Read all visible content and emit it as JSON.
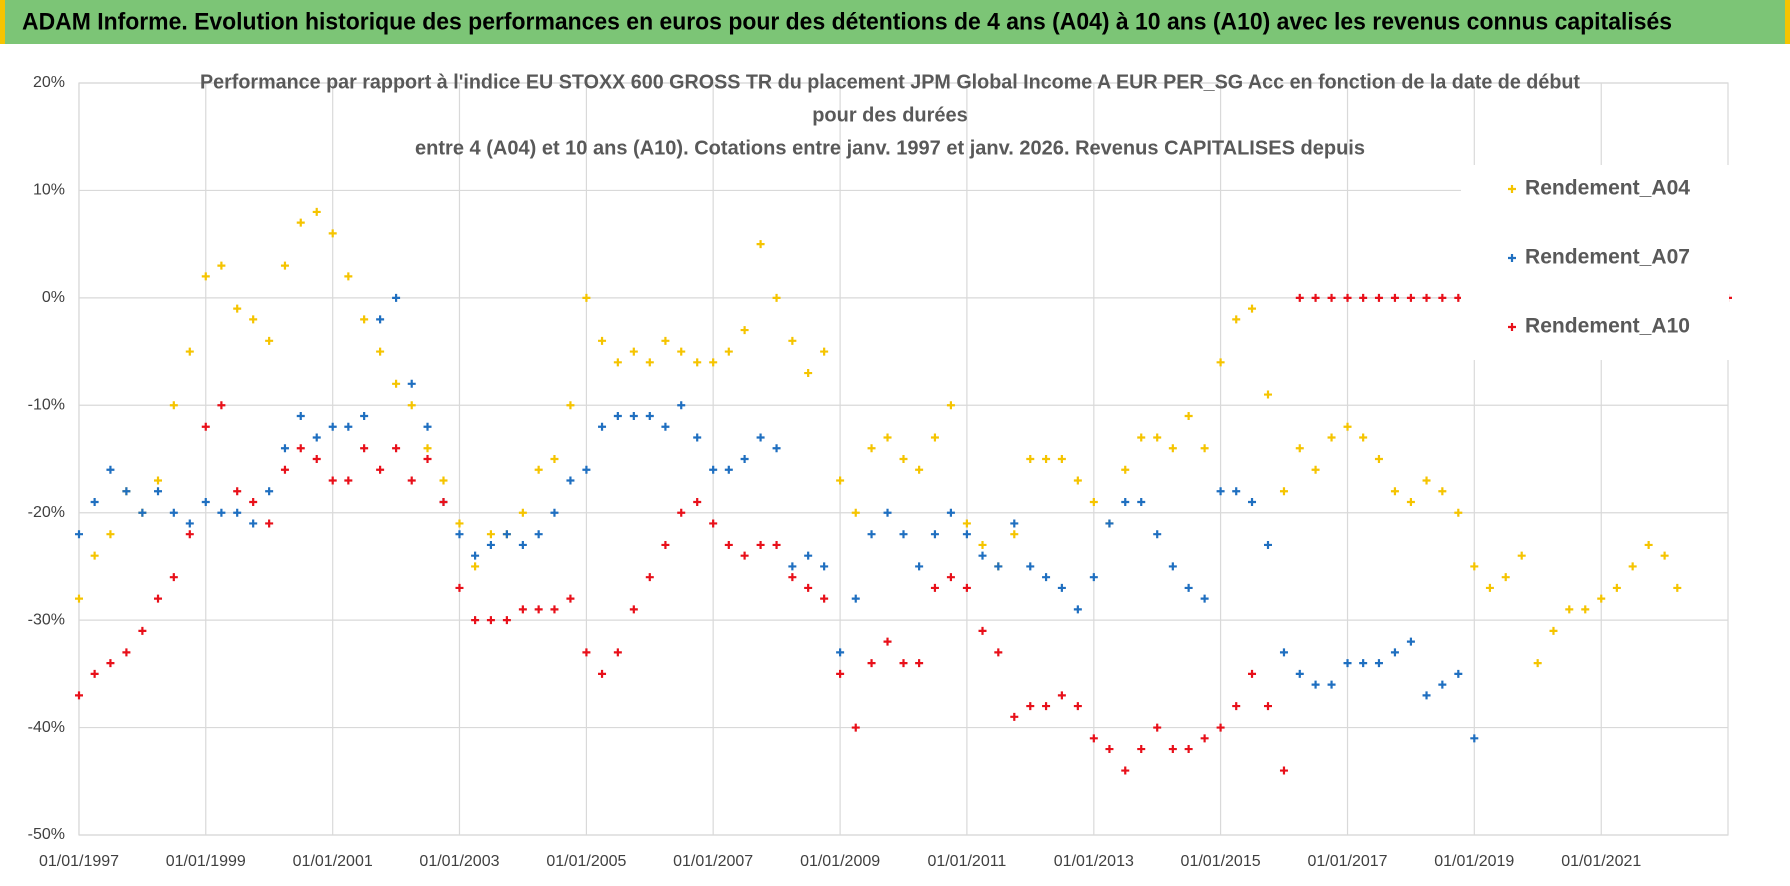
{
  "header": {
    "title": "ADAM Informe. Evolution historique des performances en euros pour des détentions de 4 ans (A04) à 10 ans (A10) avec les revenus connus capitalisés"
  },
  "chart_data": {
    "type": "scatter",
    "title": [
      "Performance par rapport à l'indice EU STOXX 600 GROSS TR  du placement JPM Global Income A EUR PER_SG Acc en fonction de la date de début",
      "pour des durées",
      "entre 4 (A04) et 10 ans (A10).  Cotations entre janv. 1997 et janv. 2026. Revenus CAPITALISES depuis"
    ],
    "xlim": [
      "1997-01-01",
      "2023-01-01"
    ],
    "xticks": [
      {
        "value": "1997-01-01",
        "label": "01/01/1997"
      },
      {
        "value": "1999-01-01",
        "label": "01/01/1999"
      },
      {
        "value": "2001-01-01",
        "label": "01/01/2001"
      },
      {
        "value": "2003-01-01",
        "label": "01/01/2003"
      },
      {
        "value": "2005-01-01",
        "label": "01/01/2005"
      },
      {
        "value": "2007-01-01",
        "label": "01/01/2007"
      },
      {
        "value": "2009-01-01",
        "label": "01/01/2009"
      },
      {
        "value": "2011-01-01",
        "label": "01/01/2011"
      },
      {
        "value": "2013-01-01",
        "label": "01/01/2013"
      },
      {
        "value": "2015-01-01",
        "label": "01/01/2015"
      },
      {
        "value": "2017-01-01",
        "label": "01/01/2017"
      },
      {
        "value": "2019-01-01",
        "label": "01/01/2019"
      },
      {
        "value": "2021-01-01",
        "label": "01/01/2021"
      }
    ],
    "ylim": [
      -50,
      20
    ],
    "yticks": [
      {
        "value": -50,
        "label": "-50%"
      },
      {
        "value": -40,
        "label": "-40%"
      },
      {
        "value": -30,
        "label": "-30%"
      },
      {
        "value": -20,
        "label": "-20%"
      },
      {
        "value": -10,
        "label": "-10%"
      },
      {
        "value": 0,
        "label": "0%"
      },
      {
        "value": 10,
        "label": "10%"
      },
      {
        "value": 20,
        "label": "20%"
      }
    ],
    "grid": true,
    "legend": "right",
    "series": [
      {
        "name": "Rendement_A04",
        "color": "#f5c400",
        "x": [
          "1997-01-01",
          "1997-04-01",
          "1997-07-01",
          "1997-10-01",
          "1998-01-01",
          "1998-04-01",
          "1998-07-01",
          "1998-10-01",
          "1999-01-01",
          "1999-04-01",
          "1999-07-01",
          "1999-10-01",
          "2000-01-01",
          "2000-04-01",
          "2000-07-01",
          "2000-10-01",
          "2001-01-01",
          "2001-04-01",
          "2001-07-01",
          "2001-10-01",
          "2002-01-01",
          "2002-04-01",
          "2002-07-01",
          "2002-10-01",
          "2003-01-01",
          "2003-04-01",
          "2003-07-01",
          "2003-10-01",
          "2004-01-01",
          "2004-04-01",
          "2004-07-01",
          "2004-10-01",
          "2005-01-01",
          "2005-04-01",
          "2005-07-01",
          "2005-10-01",
          "2006-01-01",
          "2006-04-01",
          "2006-07-01",
          "2006-10-01",
          "2007-01-01",
          "2007-04-01",
          "2007-07-01",
          "2007-10-01",
          "2008-01-01",
          "2008-04-01",
          "2008-07-01",
          "2008-10-01",
          "2009-01-01",
          "2009-04-01",
          "2009-07-01",
          "2009-10-01",
          "2010-01-01",
          "2010-04-01",
          "2010-07-01",
          "2010-10-01",
          "2011-01-01",
          "2011-04-01",
          "2011-07-01",
          "2011-10-01",
          "2012-01-01",
          "2012-04-01",
          "2012-07-01",
          "2012-10-01",
          "2013-01-01",
          "2013-04-01",
          "2013-07-01",
          "2013-10-01",
          "2014-01-01",
          "2014-04-01",
          "2014-07-01",
          "2014-10-01",
          "2015-01-01",
          "2015-04-01",
          "2015-07-01",
          "2015-10-01",
          "2016-01-01",
          "2016-04-01",
          "2016-07-01",
          "2016-10-01",
          "2017-01-01",
          "2017-04-01",
          "2017-07-01",
          "2017-10-01",
          "2018-01-01",
          "2018-04-01",
          "2018-07-01",
          "2018-10-01",
          "2019-01-01",
          "2019-04-01",
          "2019-07-01",
          "2019-10-01",
          "2020-01-01",
          "2020-04-01",
          "2020-07-01",
          "2020-10-01",
          "2021-01-01",
          "2021-04-01",
          "2021-07-01",
          "2021-10-01",
          "2022-01-01",
          "2022-03-15"
        ],
        "values": [
          -28,
          -24,
          -22,
          -18,
          -20,
          -17,
          -10,
          -5,
          2,
          3,
          -1,
          -2,
          -4,
          3,
          7,
          8,
          6,
          2,
          -2,
          -5,
          -8,
          -10,
          -14,
          -17,
          -21,
          -25,
          -22,
          -22,
          -20,
          -16,
          -15,
          -10,
          0,
          -4,
          -6,
          -5,
          -6,
          -4,
          -5,
          -6,
          -6,
          -5,
          -3,
          5,
          0,
          -4,
          -7,
          -5,
          -17,
          -20,
          -14,
          -13,
          -15,
          -16,
          -13,
          -10,
          -21,
          -23,
          -25,
          -22,
          -15,
          -15,
          -15,
          -17,
          -19,
          -21,
          -16,
          -13,
          -13,
          -14,
          -11,
          -14,
          -6,
          -2,
          -1,
          -9,
          -18,
          -14,
          -16,
          -13,
          -12,
          -13,
          -15,
          -18,
          -19,
          -17,
          -18,
          -20,
          -25,
          -27,
          -26,
          -24,
          -34,
          -31,
          -29,
          -29,
          -28,
          -27,
          -25,
          -23,
          -24,
          -27
        ]
      },
      {
        "name": "Rendement_A07",
        "color": "#1f6fc0",
        "x": [
          "1997-01-01",
          "1997-04-01",
          "1997-07-01",
          "1997-10-01",
          "1998-01-01",
          "1998-04-01",
          "1998-07-01",
          "1998-10-01",
          "1999-01-01",
          "1999-04-01",
          "1999-07-01",
          "1999-10-01",
          "2000-01-01",
          "2000-04-01",
          "2000-07-01",
          "2000-10-01",
          "2001-01-01",
          "2001-04-01",
          "2001-07-01",
          "2001-10-01",
          "2002-01-01",
          "2002-04-01",
          "2002-07-01",
          "2002-10-01",
          "2003-01-01",
          "2003-04-01",
          "2003-07-01",
          "2003-10-01",
          "2004-01-01",
          "2004-04-01",
          "2004-07-01",
          "2004-10-01",
          "2005-01-01",
          "2005-04-01",
          "2005-07-01",
          "2005-10-01",
          "2006-01-01",
          "2006-04-01",
          "2006-07-01",
          "2006-10-01",
          "2007-01-01",
          "2007-04-01",
          "2007-07-01",
          "2007-10-01",
          "2008-01-01",
          "2008-04-01",
          "2008-07-01",
          "2008-10-01",
          "2009-01-01",
          "2009-04-01",
          "2009-07-01",
          "2009-10-01",
          "2010-01-01",
          "2010-04-01",
          "2010-07-01",
          "2010-10-01",
          "2011-01-01",
          "2011-04-01",
          "2011-07-01",
          "2011-10-01",
          "2012-01-01",
          "2012-04-01",
          "2012-07-01",
          "2012-10-01",
          "2013-01-01",
          "2013-04-01",
          "2013-07-01",
          "2013-10-01",
          "2014-01-01",
          "2014-04-01",
          "2014-07-01",
          "2014-10-01",
          "2015-01-01",
          "2015-04-01",
          "2015-07-01",
          "2015-10-01",
          "2016-01-01",
          "2016-04-01",
          "2016-07-01",
          "2016-10-01",
          "2017-01-01",
          "2017-04-01",
          "2017-07-01",
          "2017-10-01",
          "2018-01-01",
          "2018-04-01",
          "2018-07-01",
          "2018-10-01",
          "2019-01-01"
        ],
        "values": [
          -22,
          -19,
          -16,
          -18,
          -20,
          -18,
          -20,
          -21,
          -19,
          -20,
          -20,
          -21,
          -18,
          -14,
          -11,
          -13,
          -12,
          -12,
          -11,
          -2,
          0,
          -8,
          -12,
          -19,
          -22,
          -24,
          -23,
          -22,
          -23,
          -22,
          -20,
          -17,
          -16,
          -12,
          -11,
          -11,
          -11,
          -12,
          -10,
          -13,
          -16,
          -16,
          -15,
          -13,
          -14,
          -25,
          -24,
          -25,
          -33,
          -28,
          -22,
          -20,
          -22,
          -25,
          -22,
          -20,
          -22,
          -24,
          -25,
          -21,
          -25,
          -26,
          -27,
          -29,
          -26,
          -21,
          -19,
          -19,
          -22,
          -25,
          -27,
          -28,
          -18,
          -18,
          -19,
          -23,
          -33,
          -35,
          -36,
          -36,
          -34,
          -34,
          -34,
          -33,
          -32,
          -37,
          -36,
          -35,
          -41
        ]
      },
      {
        "name": "Rendement_A10",
        "color": "#e8101a",
        "x": [
          "1997-01-01",
          "1997-04-01",
          "1997-07-01",
          "1997-10-01",
          "1998-01-01",
          "1998-04-01",
          "1998-07-01",
          "1998-10-01",
          "1999-01-01",
          "1999-04-01",
          "1999-07-01",
          "1999-10-01",
          "2000-01-01",
          "2000-04-01",
          "2000-07-01",
          "2000-10-01",
          "2001-01-01",
          "2001-04-01",
          "2001-07-01",
          "2001-10-01",
          "2002-01-01",
          "2002-04-01",
          "2002-07-01",
          "2002-10-01",
          "2003-01-01",
          "2003-04-01",
          "2003-07-01",
          "2003-10-01",
          "2004-01-01",
          "2004-04-01",
          "2004-07-01",
          "2004-10-01",
          "2005-01-01",
          "2005-04-01",
          "2005-07-01",
          "2005-10-01",
          "2006-01-01",
          "2006-04-01",
          "2006-07-01",
          "2006-10-01",
          "2007-01-01",
          "2007-04-01",
          "2007-07-01",
          "2007-10-01",
          "2008-01-01",
          "2008-04-01",
          "2008-07-01",
          "2008-10-01",
          "2009-01-01",
          "2009-04-01",
          "2009-07-01",
          "2009-10-01",
          "2010-01-01",
          "2010-04-01",
          "2010-07-01",
          "2010-10-01",
          "2011-01-01",
          "2011-04-01",
          "2011-07-01",
          "2011-10-01",
          "2012-01-01",
          "2012-04-01",
          "2012-07-01",
          "2012-10-01",
          "2013-01-01",
          "2013-04-01",
          "2013-07-01",
          "2013-10-01",
          "2014-01-01",
          "2014-04-01",
          "2014-07-01",
          "2014-10-01",
          "2015-01-01",
          "2015-04-01",
          "2015-07-01",
          "2015-10-01",
          "2016-01-01",
          "2016-04-01",
          "2016-07-01",
          "2016-10-01",
          "2017-01-01",
          "2017-04-01",
          "2017-07-01",
          "2017-10-01",
          "2018-01-01",
          "2018-04-01",
          "2018-07-01",
          "2018-10-01",
          "2023-01-01"
        ],
        "values": [
          -37,
          -35,
          -34,
          -33,
          -31,
          -28,
          -26,
          -22,
          -12,
          -10,
          -18,
          -19,
          -21,
          -16,
          -14,
          -15,
          -17,
          -17,
          -14,
          -16,
          -14,
          -17,
          -15,
          -19,
          -27,
          -30,
          -30,
          -30,
          -29,
          -29,
          -29,
          -28,
          -33,
          -35,
          -33,
          -29,
          -26,
          -23,
          -20,
          -19,
          -21,
          -23,
          -24,
          -23,
          -23,
          -26,
          -27,
          -28,
          -35,
          -40,
          -34,
          -32,
          -34,
          -34,
          -27,
          -26,
          -27,
          -31,
          -33,
          -39,
          -38,
          -38,
          -37,
          -38,
          -41,
          -42,
          -44,
          -42,
          -40,
          -42,
          -42,
          -41,
          -40,
          -38,
          -35,
          -38,
          -44,
          0,
          0,
          0,
          0,
          0,
          0,
          0,
          0,
          0,
          0,
          0,
          0
        ]
      }
    ]
  }
}
